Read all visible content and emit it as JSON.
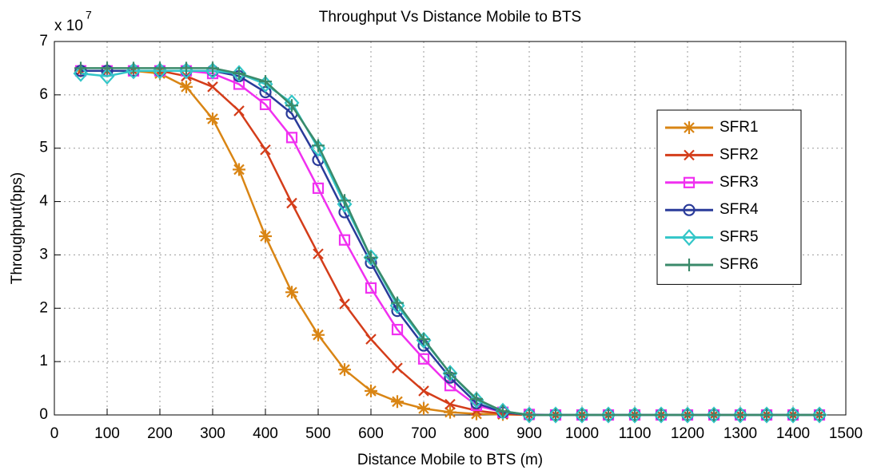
{
  "chart_data": {
    "type": "line",
    "title": "Throughput Vs Distance Mobile to BTS",
    "x_label": "Distance Mobile to BTS (m)",
    "y_label": "Throughput(bps)",
    "y_scale_label": "x 10",
    "y_scale_exponent": "7",
    "x": [
      50,
      100,
      150,
      200,
      250,
      300,
      350,
      400,
      450,
      500,
      550,
      600,
      650,
      700,
      750,
      800,
      850,
      900,
      950,
      1000,
      1050,
      1100,
      1150,
      1200,
      1250,
      1300,
      1350,
      1400,
      1450
    ],
    "series": [
      {
        "name": "SFR1",
        "color": "#d98514",
        "marker": "asterisk",
        "values": [
          6.45,
          6.45,
          6.45,
          6.4,
          6.15,
          5.55,
          4.6,
          3.35,
          2.3,
          1.5,
          0.85,
          0.45,
          0.25,
          0.12,
          0.05,
          0.02,
          0.01,
          0,
          0,
          0,
          0,
          0,
          0,
          0,
          0,
          0,
          0,
          0,
          0
        ]
      },
      {
        "name": "SFR2",
        "color": "#d43d1a",
        "marker": "x",
        "values": [
          6.45,
          6.45,
          6.45,
          6.45,
          6.35,
          6.15,
          5.7,
          4.97,
          3.97,
          3.02,
          2.08,
          1.42,
          0.88,
          0.45,
          0.2,
          0.08,
          0.02,
          0,
          0,
          0,
          0,
          0,
          0,
          0,
          0,
          0,
          0,
          0,
          0
        ]
      },
      {
        "name": "SFR3",
        "color": "#f030f0",
        "marker": "square",
        "values": [
          6.45,
          6.45,
          6.45,
          6.45,
          6.45,
          6.4,
          6.2,
          5.82,
          5.2,
          4.25,
          3.28,
          2.38,
          1.6,
          1.05,
          0.55,
          0.18,
          0.05,
          0.01,
          0,
          0,
          0,
          0,
          0,
          0,
          0,
          0,
          0,
          0,
          0
        ]
      },
      {
        "name": "SFR4",
        "color": "#2a3b9a",
        "marker": "circle",
        "values": [
          6.45,
          6.45,
          6.45,
          6.45,
          6.45,
          6.45,
          6.35,
          6.05,
          5.65,
          4.78,
          3.8,
          2.85,
          1.95,
          1.3,
          0.7,
          0.22,
          0.05,
          0,
          0,
          0,
          0,
          0,
          0,
          0,
          0,
          0,
          0,
          0,
          0
        ]
      },
      {
        "name": "SFR5",
        "color": "#33c6c8",
        "marker": "diamond",
        "values": [
          6.4,
          6.35,
          6.45,
          6.45,
          6.45,
          6.45,
          6.4,
          6.2,
          5.85,
          5.0,
          3.95,
          2.95,
          2.05,
          1.4,
          0.78,
          0.28,
          0.07,
          0,
          0,
          0,
          0,
          0,
          0,
          0,
          0,
          0,
          0,
          0,
          0
        ]
      },
      {
        "name": "SFR6",
        "color": "#3a8a6a",
        "marker": "plus",
        "values": [
          6.5,
          6.5,
          6.5,
          6.5,
          6.5,
          6.5,
          6.4,
          6.25,
          5.8,
          5.05,
          4.02,
          2.95,
          2.1,
          1.42,
          0.78,
          0.3,
          0.07,
          0,
          0,
          0,
          0,
          0,
          0,
          0,
          0,
          0,
          0,
          0,
          0
        ]
      }
    ],
    "xlim": [
      0,
      1500
    ],
    "xticks": [
      0,
      100,
      200,
      300,
      400,
      500,
      600,
      700,
      800,
      900,
      1000,
      1100,
      1200,
      1300,
      1400,
      1500
    ],
    "ylim": [
      0,
      7
    ],
    "yticks": [
      0,
      1,
      2,
      3,
      4,
      5,
      6,
      7
    ],
    "grid": true,
    "legend": "upper right"
  }
}
